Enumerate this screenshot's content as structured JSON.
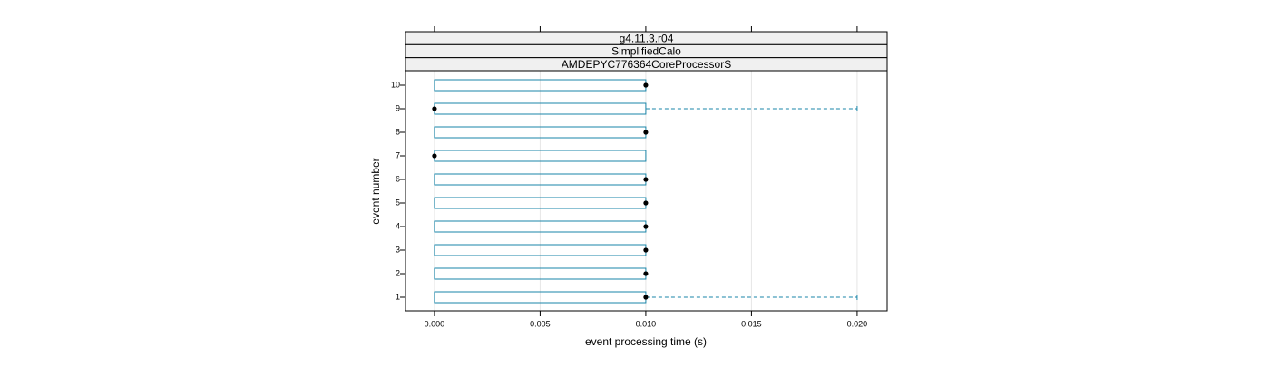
{
  "chart_data": {
    "type": "box",
    "strips": [
      "g4.11.3.r04",
      "SimplifiedCalo",
      "AMDEPYC776364CoreProcessorS"
    ],
    "xlabel": "event processing time (s)",
    "ylabel": "event number",
    "categories": [
      "1",
      "2",
      "3",
      "4",
      "5",
      "6",
      "7",
      "8",
      "9",
      "10"
    ],
    "min": [
      0,
      0,
      0,
      0,
      0,
      0,
      0,
      0,
      0,
      0
    ],
    "q1": [
      0,
      0,
      0,
      0,
      0,
      0,
      0,
      0,
      0,
      0
    ],
    "median": [
      0.01,
      0.01,
      0.01,
      0.01,
      0.01,
      0.01,
      0,
      0.01,
      0,
      0.01
    ],
    "q3": [
      0.01,
      0.01,
      0.01,
      0.01,
      0.01,
      0.01,
      0.01,
      0.01,
      0.01,
      0.01
    ],
    "max": [
      0.02,
      0.01,
      0.01,
      0.01,
      0.01,
      0.01,
      0.01,
      0.01,
      0.02,
      0.01
    ],
    "color": "#1a85a8",
    "median_color": "#000000",
    "xlim": [
      -0.00137,
      0.02142
    ],
    "xticks": [
      {
        "value": 0,
        "label": "0.000"
      },
      {
        "value": 0.005,
        "label": "0.005"
      },
      {
        "value": 0.01,
        "label": "0.010"
      },
      {
        "value": 0.015,
        "label": "0.015"
      },
      {
        "value": 0.02,
        "label": "0.020"
      }
    ],
    "grid": true
  }
}
